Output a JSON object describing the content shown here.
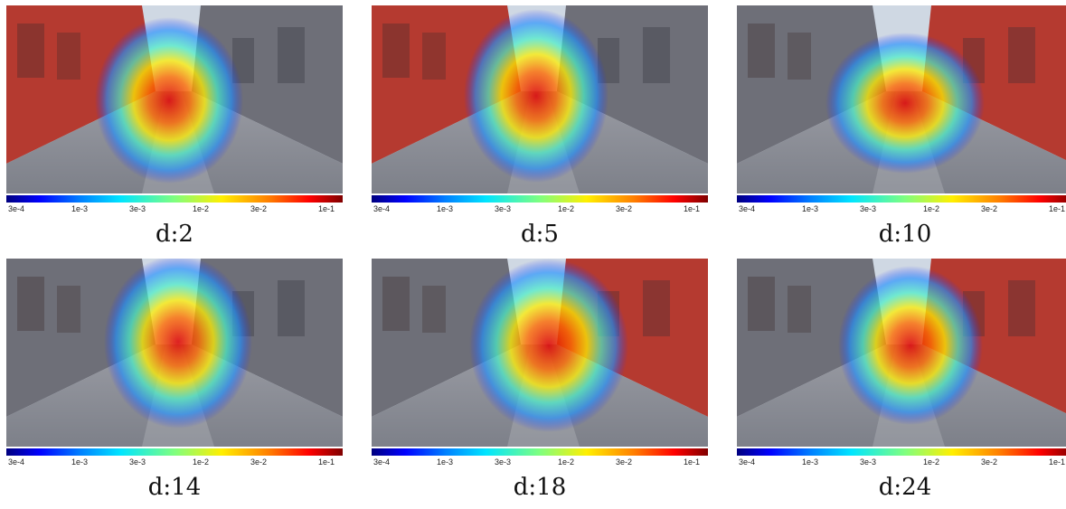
{
  "colorbar_ticks": [
    "3e-4",
    "1e-3",
    "3e-3",
    "1e-2",
    "3e-2",
    "1e-1"
  ],
  "colorbar_colormap": "jet",
  "panels": [
    {
      "caption": "d:2"
    },
    {
      "caption": "d:5"
    },
    {
      "caption": "d:10"
    },
    {
      "caption": "d:14"
    },
    {
      "caption": "d:18"
    },
    {
      "caption": "d:24"
    }
  ],
  "colors": {
    "sky": "#cfd8e3",
    "building_red": "#b53a30",
    "building_grey": "#6e6f78",
    "cobblestone": "#7d8089",
    "heat_low": "#1f2bff",
    "heat_mid": "#ffef00",
    "heat_high": "#e00000"
  }
}
